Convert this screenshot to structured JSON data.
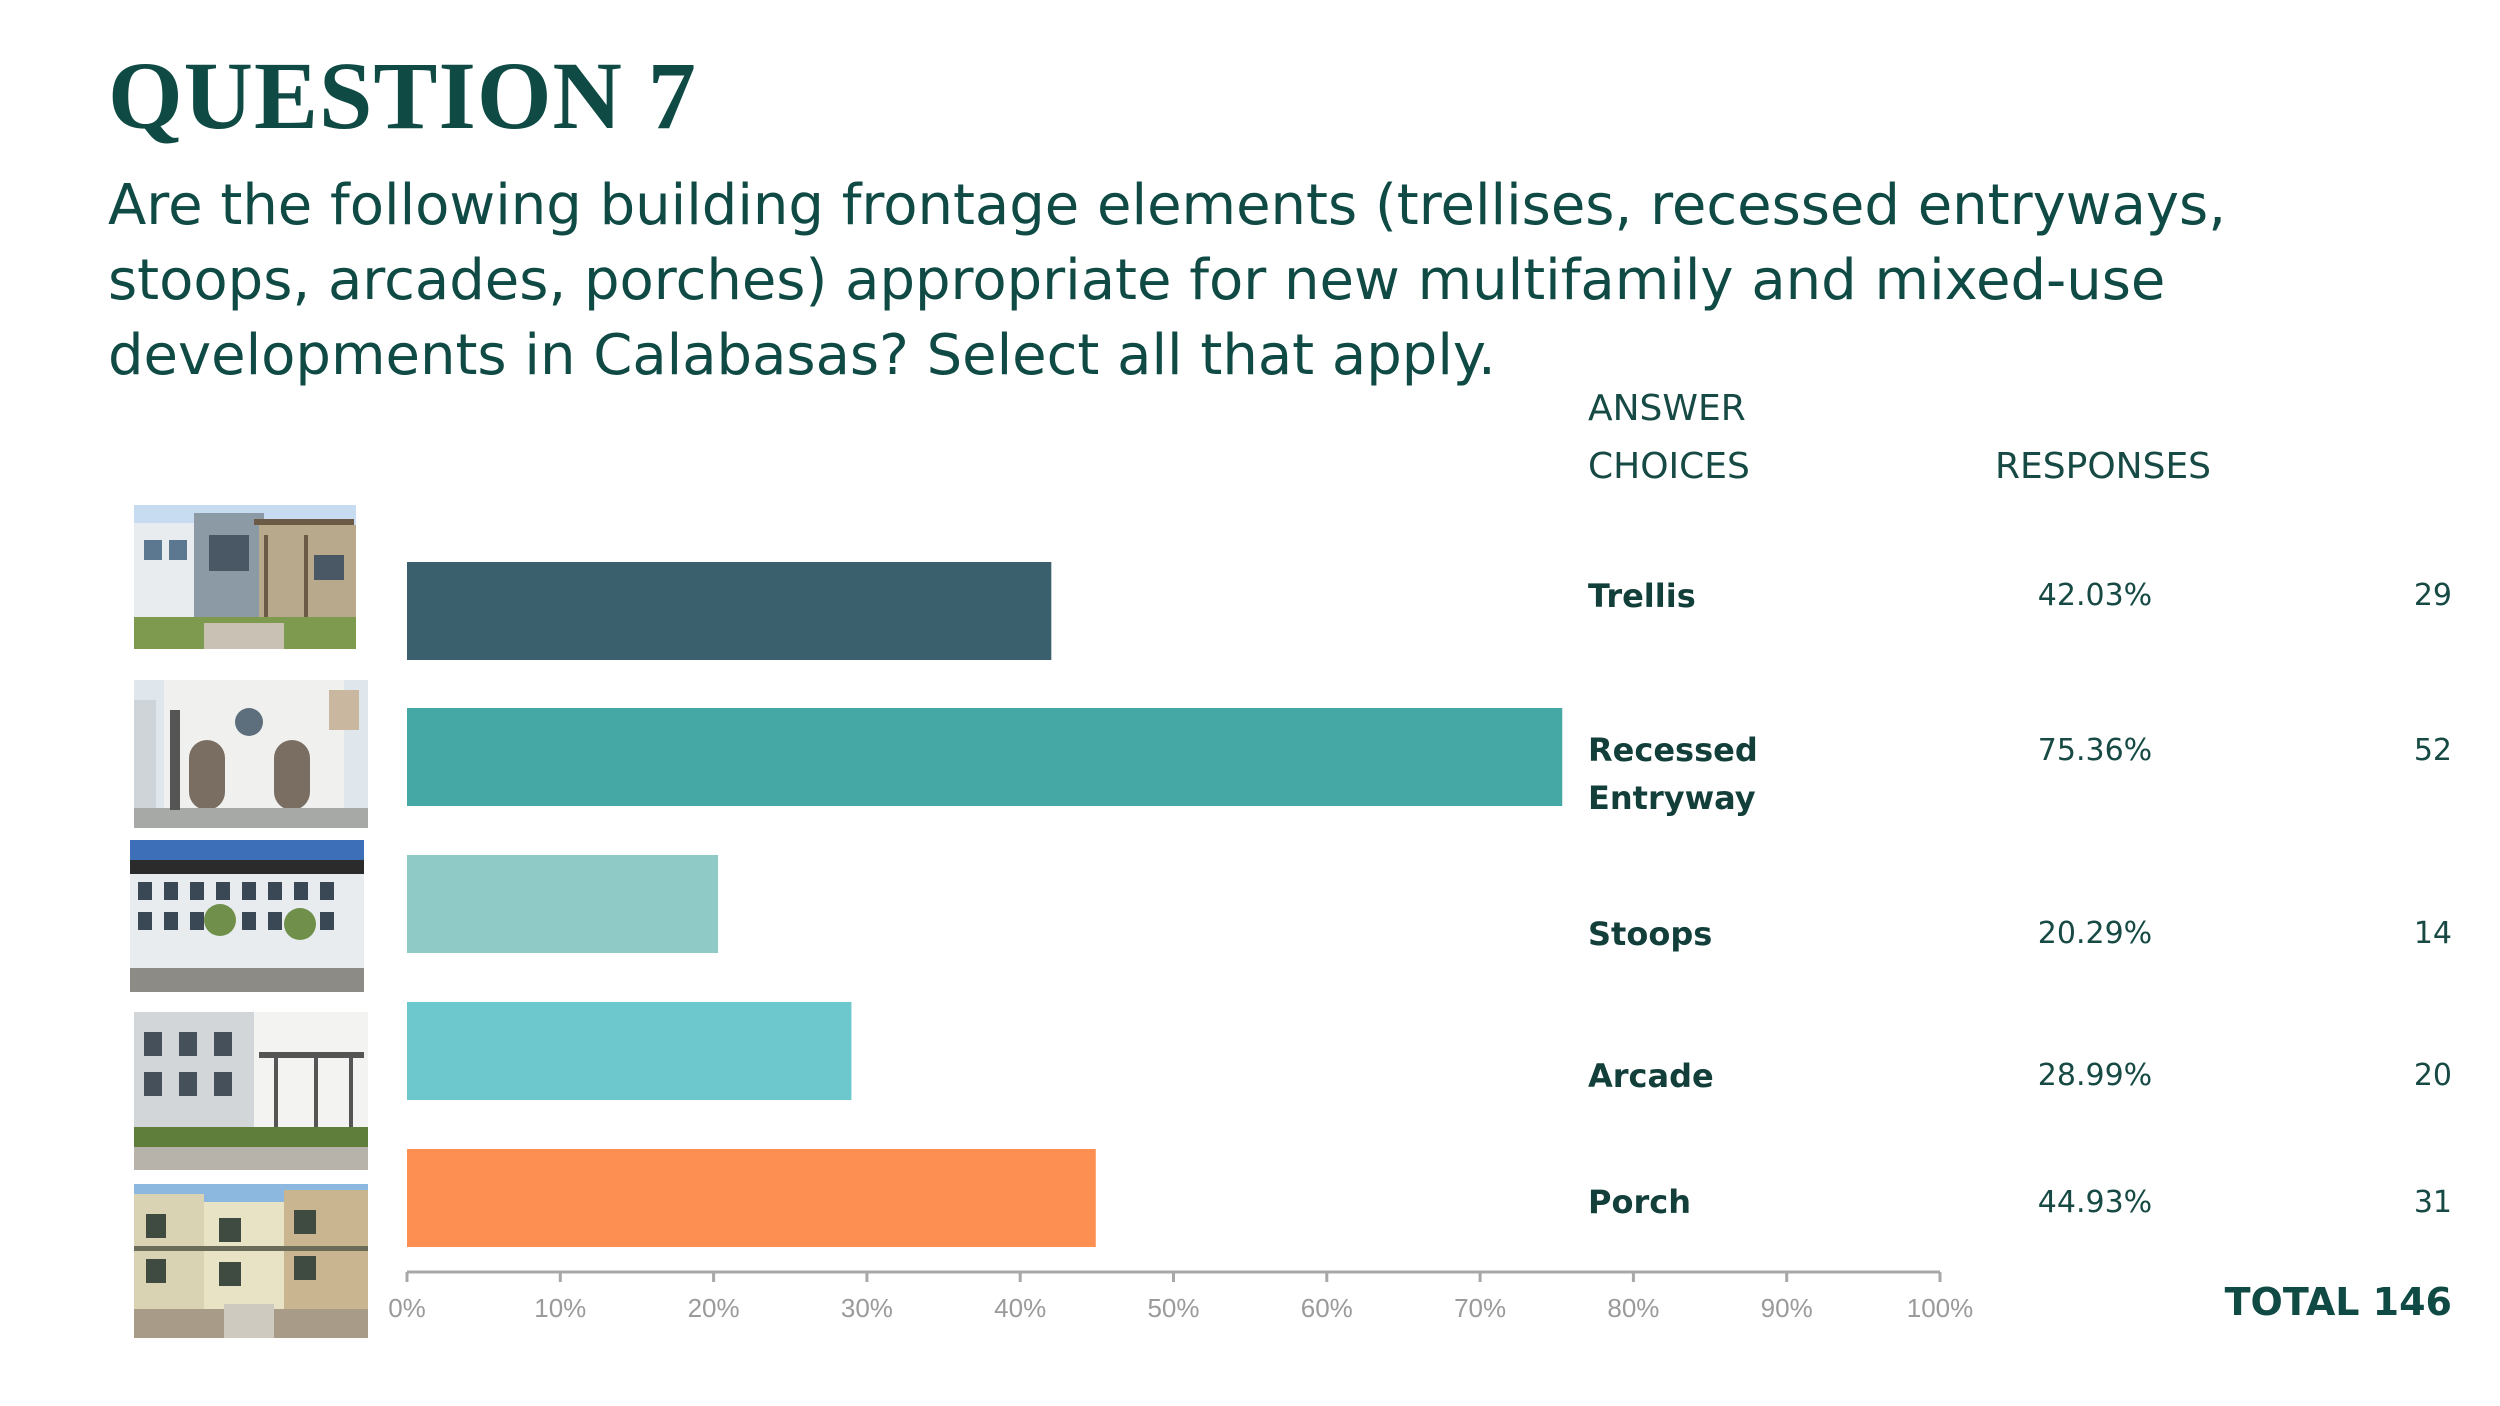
{
  "title": "QUESTION 7",
  "question": "Are the following building frontage elements (trellises, recessed entryways, stoops, arcades, porches) appropriate for new multifamily and mixed-use developments in Calabasas? Select all that apply.",
  "headers": {
    "answer_line1": "ANSWER",
    "answer_line2": "CHOICES",
    "responses": "RESPONSES"
  },
  "total_label": "TOTAL 146",
  "colors": {
    "trellis": "#3a606d",
    "recessed": "#46a8a5",
    "stoops": "#8fcac7",
    "arcade": "#6dc8cd",
    "porch": "#fe8f52",
    "text": "#0f4a44"
  },
  "chart_data": {
    "type": "bar",
    "orientation": "horizontal",
    "categories": [
      "Trellis",
      "Recessed Entryway",
      "Stoops",
      "Arcade",
      "Porch"
    ],
    "label_lines": [
      [
        "Trellis"
      ],
      [
        "Recessed",
        "Entryway"
      ],
      [
        "Stoops"
      ],
      [
        "Arcade"
      ],
      [
        "Porch"
      ]
    ],
    "values": [
      42.03,
      75.36,
      20.29,
      28.99,
      44.93
    ],
    "percent_labels": [
      "42.03%",
      "75.36%",
      "20.29%",
      "28.99%",
      "44.93%"
    ],
    "counts": [
      "29",
      "52",
      "14",
      "20",
      "31"
    ],
    "xlim": [
      0,
      100
    ],
    "xticks": [
      "0%",
      "10%",
      "20%",
      "30%",
      "40%",
      "50%",
      "60%",
      "70%",
      "80%",
      "90%",
      "100%"
    ],
    "grid": false,
    "legend": "none",
    "images": [
      "trellis-photo",
      "recessed-entryway-photo",
      "stoops-photo",
      "arcade-photo",
      "porch-photo"
    ]
  }
}
